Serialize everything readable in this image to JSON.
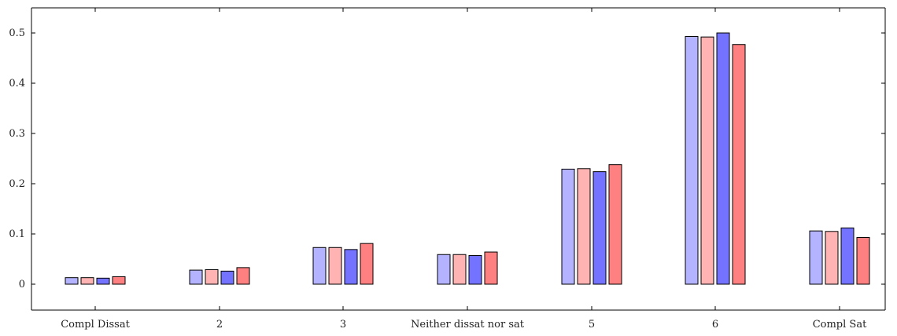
{
  "chart_data": {
    "type": "bar",
    "title": "",
    "xlabel": "",
    "ylabel": "",
    "categories": [
      "Compl Dissat",
      "2",
      "3",
      "Neither dissat nor sat",
      "5",
      "6",
      "Compl Sat"
    ],
    "ylim": [
      -0.045,
      0.545
    ],
    "yticks": [
      0,
      0.1,
      0.2,
      0.3,
      0.4,
      0.5
    ],
    "ytick_labels": [
      "0",
      "0.1",
      "0.2",
      "0.3",
      "0.4",
      "0.5"
    ],
    "grid": false,
    "legend": "none",
    "series": [
      {
        "color": "#b3b3ff",
        "values": [
          0.013,
          0.028,
          0.073,
          0.059,
          0.229,
          0.493,
          0.106
        ]
      },
      {
        "color": "#ffb3b3",
        "values": [
          0.013,
          0.029,
          0.073,
          0.059,
          0.23,
          0.492,
          0.105
        ]
      },
      {
        "color": "#7373ff",
        "values": [
          0.012,
          0.026,
          0.069,
          0.057,
          0.224,
          0.5,
          0.112
        ]
      },
      {
        "color": "#ff8080",
        "values": [
          0.015,
          0.033,
          0.081,
          0.064,
          0.238,
          0.477,
          0.093
        ]
      }
    ]
  }
}
